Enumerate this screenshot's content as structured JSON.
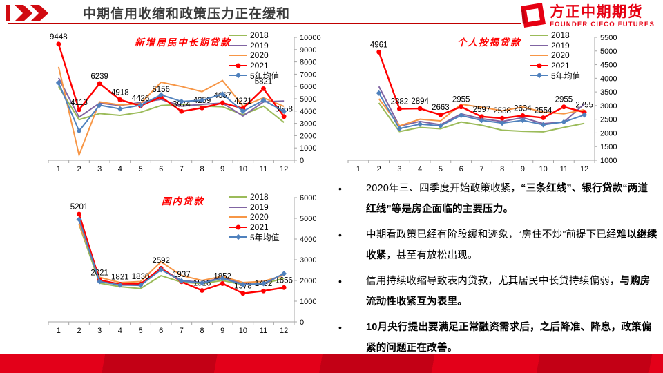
{
  "slide": {
    "header": {
      "title": "中期信用收缩和政策压力正在缓和",
      "icon": "double-chevron-right",
      "accent_color": "#c00000"
    },
    "logo": {
      "brand": "方正中期期货",
      "subtitle": "FOUNDER CIFCO FUTURES",
      "mark_icon": "open-square-logo",
      "color": "#e60012"
    },
    "bullets": [
      {
        "segments": [
          {
            "text": "2020年三、四季度开始政策收紧，",
            "bold": false
          },
          {
            "text": "“三条红线”、银行贷款“两道红线”等是房企面临的主要压力。",
            "bold": true
          }
        ]
      },
      {
        "segments": [
          {
            "text": "中期看政策已经有阶段缓和迹象，“房住不炒”前提下已经",
            "bold": false
          },
          {
            "text": "难以继续收紧",
            "bold": true
          },
          {
            "text": "，甚至有放松出现。",
            "bold": false
          }
        ]
      },
      {
        "segments": [
          {
            "text": "信用持续收缩导致表内贷款，尤其居民中长贷持续偏弱，",
            "bold": false
          },
          {
            "text": "与购房流动性收紧互为表里。",
            "bold": true
          }
        ]
      },
      {
        "segments": [
          {
            "text": "10月央行提出要满足正常融资需求后，之后降准、降息，政策偏紧的问题正在改善。",
            "bold": true
          }
        ]
      }
    ]
  },
  "chart_data": [
    {
      "type": "line",
      "title": "新增居民中长期贷款",
      "title_color": "#ff0000",
      "categories": [
        1,
        2,
        3,
        4,
        5,
        6,
        7,
        8,
        9,
        10,
        11,
        12
      ],
      "ylim": [
        0,
        10000
      ],
      "ystep": 1000,
      "grid": false,
      "legend_position": "top-right-inside",
      "series": [
        {
          "name": "2018",
          "color": "#9bbb59",
          "marker": "none",
          "values": [
            6000,
            3300,
            3800,
            3650,
            3900,
            4450,
            4550,
            4400,
            4350,
            3700,
            4400,
            3080
          ]
        },
        {
          "name": "2019",
          "color": "#8064a2",
          "marker": "none",
          "values": [
            6700,
            3500,
            4650,
            4450,
            4700,
            4950,
            4400,
            4550,
            4650,
            3600,
            4750,
            4820
          ]
        },
        {
          "name": "2020",
          "color": "#f79646",
          "marker": "none",
          "values": [
            7600,
            420,
            4750,
            4500,
            4600,
            6350,
            6000,
            5580,
            6480,
            4400,
            5080,
            4380
          ]
        },
        {
          "name": "2021",
          "color": "#ff0000",
          "marker": "circle",
          "data_labels": true,
          "values": [
            9448,
            4113,
            6239,
            4918,
            4426,
            5156,
            3974,
            4259,
            4667,
            4221,
            5821,
            3558
          ]
        },
        {
          "name": "5年均值",
          "color": "#4f81bd",
          "marker": "diamond",
          "values": [
            6300,
            2380,
            4480,
            4180,
            4480,
            5320,
            4780,
            4880,
            5380,
            3980,
            4880,
            3980
          ]
        }
      ]
    },
    {
      "type": "line",
      "title": "个人按揭贷款",
      "title_color": "#ff0000",
      "categories": [
        1,
        2,
        3,
        4,
        5,
        6,
        7,
        8,
        9,
        10,
        11,
        12
      ],
      "ylim": [
        1000,
        5500
      ],
      "ystep": 500,
      "grid": false,
      "legend_position": "top-right-inside",
      "series": [
        {
          "name": "2018",
          "color": "#9bbb59",
          "marker": "none",
          "values": [
            null,
            3100,
            2050,
            2200,
            2150,
            2400,
            2280,
            2100,
            2060,
            2040,
            2200,
            2350
          ]
        },
        {
          "name": "2019",
          "color": "#8064a2",
          "marker": "none",
          "values": [
            null,
            3700,
            2250,
            2420,
            2300,
            2700,
            2520,
            2420,
            2560,
            2340,
            2400,
            3060
          ]
        },
        {
          "name": "2020",
          "color": "#f79646",
          "marker": "none",
          "values": [
            null,
            3250,
            2260,
            2500,
            2440,
            3050,
            2940,
            2810,
            2950,
            2760,
            2700,
            2850
          ]
        },
        {
          "name": "2021",
          "color": "#ff0000",
          "marker": "circle",
          "data_labels": true,
          "values": [
            null,
            4961,
            2882,
            2894,
            2663,
            2955,
            2597,
            2538,
            2634,
            2554,
            2955,
            2755
          ]
        },
        {
          "name": "5年均值",
          "color": "#4f81bd",
          "marker": "diamond",
          "values": [
            null,
            3460,
            2160,
            2320,
            2260,
            2640,
            2460,
            2360,
            2460,
            2300,
            2400,
            2660
          ]
        }
      ]
    },
    {
      "type": "line",
      "title": "国内贷款",
      "title_color": "#ff0000",
      "categories": [
        1,
        2,
        3,
        4,
        5,
        6,
        7,
        8,
        9,
        10,
        11,
        12
      ],
      "ylim": [
        0,
        6000
      ],
      "ystep": 1000,
      "grid": false,
      "legend_position": "top-right-inside",
      "series": [
        {
          "name": "2018",
          "color": "#9bbb59",
          "marker": "none",
          "values": [
            null,
            4700,
            1870,
            1700,
            1610,
            2230,
            1920,
            1850,
            2000,
            1790,
            1850,
            2100
          ]
        },
        {
          "name": "2019",
          "color": "#8064a2",
          "marker": "none",
          "values": [
            null,
            4900,
            1960,
            1810,
            1760,
            2560,
            2010,
            1900,
            2140,
            1850,
            1800,
            2340
          ]
        },
        {
          "name": "2020",
          "color": "#f79646",
          "marker": "none",
          "values": [
            null,
            4720,
            2150,
            1900,
            1950,
            2900,
            2240,
            2000,
            2200,
            1900,
            1960,
            2250
          ]
        },
        {
          "name": "2021",
          "color": "#ff0000",
          "marker": "circle",
          "data_labels": true,
          "values": [
            null,
            5201,
            2021,
            1821,
            1830,
            2592,
            1937,
            1516,
            1852,
            1378,
            1492,
            1656
          ]
        },
        {
          "name": "5年均值",
          "color": "#4f81bd",
          "marker": "diamond",
          "values": [
            null,
            4950,
            1950,
            1780,
            1770,
            2520,
            1980,
            1880,
            2100,
            1800,
            1850,
            2330
          ]
        }
      ]
    }
  ]
}
